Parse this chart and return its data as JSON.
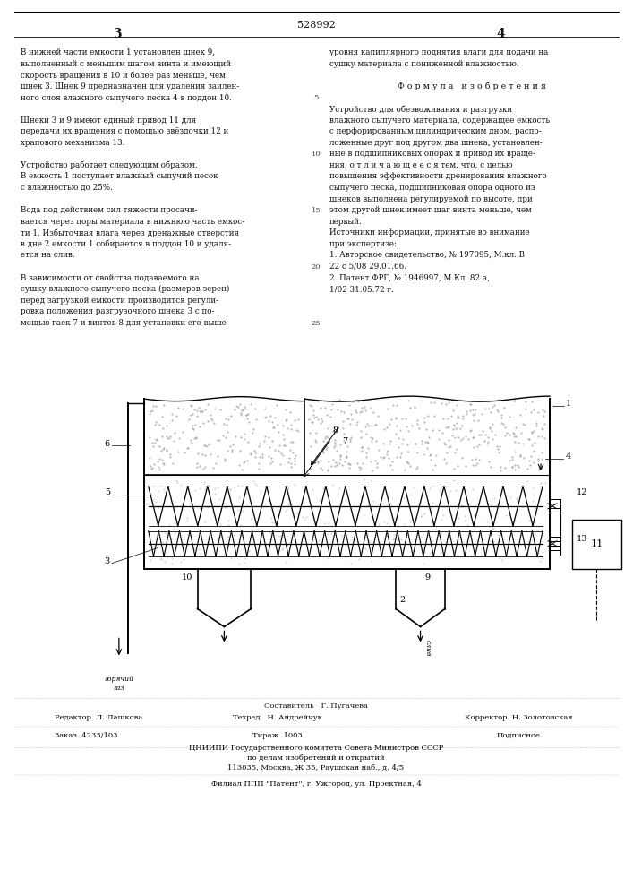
{
  "bg_color": "#ffffff",
  "page_width": 7.07,
  "page_height": 10.0,
  "patent_number": "528992",
  "page_num_left": "3",
  "page_num_right": "4",
  "col1_texts": [
    "В нижней части емкости 1 установлен шнек 9,",
    "выполненный с меньшим шагом винта и имеющий",
    "скорость вращения в 10 и более раз меньше, чем",
    "шнек 3. Шнек 9 предназначен для удаления заилен-",
    "ного слоя влажного сыпучего песка 4 в поддон 10.",
    "",
    "Шнеки 3 и 9 имеют единый привод 11 для",
    "передачи их вращения с помощью звёздочки 12 и",
    "храпового механизма 13.",
    "",
    "Устройство работает следующим образом.",
    "В емкость 1 поступает влажный сыпучий песок",
    "с влажностью до 25%.",
    "",
    "Вода под действием сил тяжести просачи-",
    "вается через поры материала в нижнюю часть емкос-",
    "ти 1. Избыточная влага через дренажные отверстия",
    "в дне 2 емкости 1 собирается в поддон 10 и удаля-",
    "ется на слив.",
    "",
    "В зависимости от свойства подаваемого на",
    "сушку влажного сыпучего песка (размеров зерен)",
    "перед загрузкой емкости производится регули-",
    "ровка положения разгрузочного шнека 3 с по-",
    "мощью гаек 7 и винтов 8 для установки его выше"
  ],
  "col2_texts": [
    "уровня капиллярного поднятия влаги для подачи на",
    "сушку материала с пониженной влажностью.",
    "",
    "Ф о р м у л а   и з о б р е т е н и я",
    "",
    "Устройство для обезвоживания и разгрузки",
    "влажного сыпучего материала, содержащее емкость",
    "с перфорированным цилиндрическим дном, распо-",
    "ложенные друг под другом два шнека, установлен-",
    "ные в подшипниковых опорах и привод их враще-",
    "ния, о т л и ч а ю щ е е с я тем, что, с целью",
    "повышения эффективности дренирования влажного",
    "сыпучего песка, подшипниковая опора одного из",
    "шнеков выполнена регулируемой по высоте, при",
    "этом другой шнек имеет шаг винта меньше, чем",
    "первый.",
    "Источники информации, принятые во внимание",
    "при экспертизе:",
    "1. Авторское свидетельство, № 197095, М.кл. В",
    "22 с 5/08 29.01.66.",
    "2. Патент ФРГ, № 1946997, М.Кл. 82 а,",
    "1/02 31.05.72 г."
  ],
  "footer": {
    "compiler_label": "Составитель",
    "compiler": "Г. Пугачева",
    "editor": "Редактор  Л. Лашкова",
    "techred_label": "Техред",
    "techred": "Н. Андрейчук",
    "corrector_label": "Корректор",
    "corrector": "Н. Золотовская",
    "order": "Заказ  4233/103",
    "tirage": "Тираж  1003",
    "podpisnoe": "Подписное",
    "tsniipii": "ЦНИИПИ Государственного комитета Совета Министров СССР",
    "po_delam": "по делам изобретений и открытий",
    "address": "113035, Москва, Ж 35, Раушская наб., д. 4/5",
    "filial": "Филиал ППП \"Патент\", г. Ужгород, ул. Проектная, 4"
  }
}
